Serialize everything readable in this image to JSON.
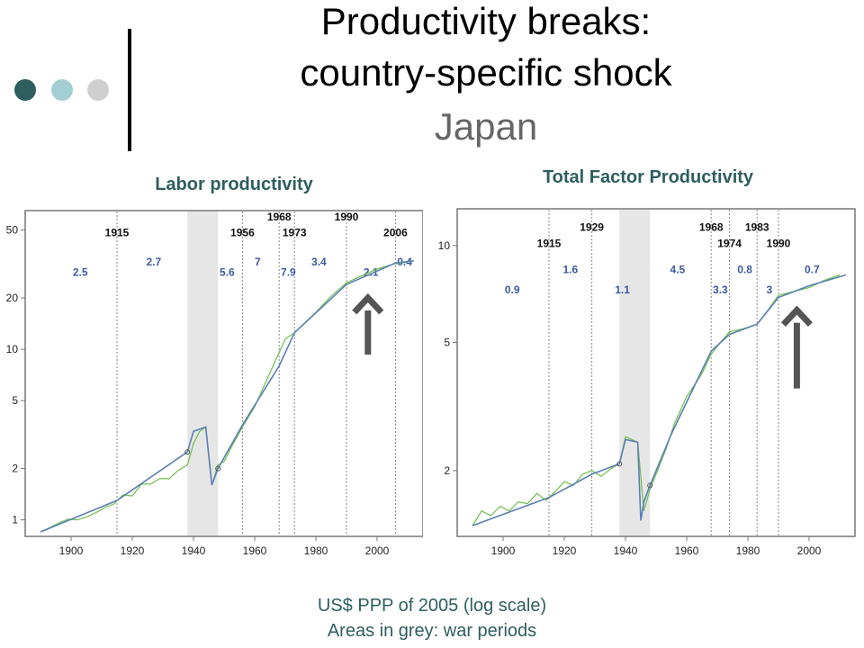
{
  "slide": {
    "title_line1": "Productivity breaks:",
    "title_line2": "country-specific shock",
    "title_line3": "Japan",
    "caption_line1": "US$ PPP of 2005 (log scale)",
    "caption_line2": "Areas in grey: war periods",
    "dot_colors": [
      "#2e5e5e",
      "#a3cfd4",
      "#cfcfcf"
    ]
  },
  "chart_data": [
    {
      "type": "line",
      "title": "Labor productivity",
      "xlabel": "",
      "ylabel": "",
      "log_scale_y": true,
      "xlim": [
        1885,
        2015
      ],
      "ylim": [
        0.8,
        65
      ],
      "x_ticks": [
        1900,
        1920,
        1940,
        1960,
        1980,
        2000
      ],
      "y_ticks": [
        1,
        2,
        5,
        10,
        20,
        50
      ],
      "grey_areas": [
        [
          1938,
          1948
        ]
      ],
      "break_years": [
        1915,
        1956,
        1968,
        1973,
        1990,
        2006
      ],
      "break_label_y": [
        46,
        46,
        57,
        46,
        57,
        46
      ],
      "growth_labels": [
        {
          "x": 1903,
          "y": 27,
          "text": "2.5"
        },
        {
          "x": 1927,
          "y": 31,
          "text": "2.7"
        },
        {
          "x": 1951,
          "y": 27,
          "text": "5.6"
        },
        {
          "x": 1961,
          "y": 31,
          "text": "7"
        },
        {
          "x": 1971,
          "y": 27,
          "text": "7.9"
        },
        {
          "x": 1981,
          "y": 31,
          "text": "3.4"
        },
        {
          "x": 1998,
          "y": 27,
          "text": "2.1"
        },
        {
          "x": 2009,
          "y": 31,
          "text": "0.4"
        }
      ],
      "series": [
        {
          "role": "actual",
          "color": "#6dbf4a",
          "x": [
            1890,
            1893,
            1896,
            1899,
            1902,
            1905,
            1908,
            1911,
            1914,
            1917,
            1920,
            1923,
            1926,
            1929,
            1932,
            1935,
            1938,
            1940,
            1942,
            1944,
            1946,
            1948,
            1950,
            1953,
            1956,
            1960,
            1965,
            1970,
            1973,
            1980,
            1985,
            1990,
            1995,
            2000,
            2005,
            2010
          ],
          "y": [
            0.85,
            0.9,
            0.96,
            1.01,
            1.0,
            1.04,
            1.1,
            1.18,
            1.24,
            1.4,
            1.38,
            1.62,
            1.62,
            1.75,
            1.74,
            1.95,
            2.1,
            2.8,
            3.3,
            3.5,
            1.6,
            2.1,
            2.2,
            2.8,
            3.5,
            4.6,
            7.3,
            11.5,
            12.5,
            16.5,
            20.5,
            24.5,
            27,
            29.5,
            31.5,
            32.5
          ]
        },
        {
          "role": "trend",
          "color": "#5b7fb5",
          "x": [
            1890,
            1915,
            1938,
            1940,
            1944,
            1946,
            1948,
            1956,
            1968,
            1973,
            1990,
            2006,
            2012
          ],
          "y": [
            0.85,
            1.3,
            2.5,
            3.3,
            3.5,
            1.6,
            2.0,
            3.6,
            8.0,
            12.5,
            24,
            32,
            33
          ]
        }
      ]
    },
    {
      "type": "line",
      "title": "Total Factor Productivity",
      "xlabel": "",
      "ylabel": "",
      "log_scale_y": true,
      "xlim": [
        1885,
        2015
      ],
      "ylim": [
        1.25,
        13
      ],
      "x_ticks": [
        1900,
        1920,
        1940,
        1960,
        1980,
        2000
      ],
      "y_ticks": [
        2,
        5,
        10
      ],
      "grey_areas": [
        [
          1938,
          1948
        ]
      ],
      "break_years": [
        1915,
        1929,
        1968,
        1974,
        1983,
        1990
      ],
      "break_label_y": [
        9.9,
        11.1,
        11.1,
        9.9,
        11.1,
        9.9
      ],
      "growth_labels": [
        {
          "x": 1903,
          "y": 7.1,
          "text": "0.9"
        },
        {
          "x": 1922,
          "y": 8.2,
          "text": "1.6"
        },
        {
          "x": 1939,
          "y": 7.1,
          "text": "1.1"
        },
        {
          "x": 1957,
          "y": 8.2,
          "text": "4.5"
        },
        {
          "x": 1971,
          "y": 7.1,
          "text": "3.3"
        },
        {
          "x": 1979,
          "y": 8.2,
          "text": "0.8"
        },
        {
          "x": 1987,
          "y": 7.1,
          "text": "3"
        },
        {
          "x": 2001,
          "y": 8.2,
          "text": "0.7"
        }
      ],
      "series": [
        {
          "role": "actual",
          "color": "#6dbf4a",
          "x": [
            1890,
            1893,
            1896,
            1899,
            1902,
            1905,
            1908,
            1911,
            1914,
            1917,
            1920,
            1923,
            1926,
            1929,
            1932,
            1935,
            1938,
            1940,
            1942,
            1944,
            1946,
            1948,
            1950,
            1953,
            1956,
            1960,
            1965,
            1968,
            1971,
            1974,
            1978,
            1983,
            1986,
            1990,
            1995,
            2000,
            2005,
            2010
          ],
          "y": [
            1.35,
            1.5,
            1.45,
            1.55,
            1.5,
            1.6,
            1.58,
            1.7,
            1.62,
            1.72,
            1.85,
            1.8,
            1.95,
            2.0,
            1.92,
            2.02,
            2.1,
            2.55,
            2.5,
            2.45,
            1.5,
            1.75,
            1.95,
            2.3,
            2.8,
            3.4,
            4.0,
            4.6,
            5.0,
            5.4,
            5.5,
            5.7,
            6.2,
            7.0,
            7.2,
            7.4,
            7.8,
            8.1
          ]
        },
        {
          "role": "trend",
          "color": "#5b7fb5",
          "x": [
            1890,
            1915,
            1929,
            1938,
            1940,
            1944,
            1945,
            1946,
            1948,
            1955,
            1968,
            1974,
            1983,
            1990,
            2000,
            2012
          ],
          "y": [
            1.35,
            1.65,
            1.95,
            2.1,
            2.5,
            2.45,
            1.4,
            1.6,
            1.8,
            2.6,
            4.7,
            5.3,
            5.7,
            6.9,
            7.5,
            8.1
          ]
        }
      ]
    }
  ]
}
